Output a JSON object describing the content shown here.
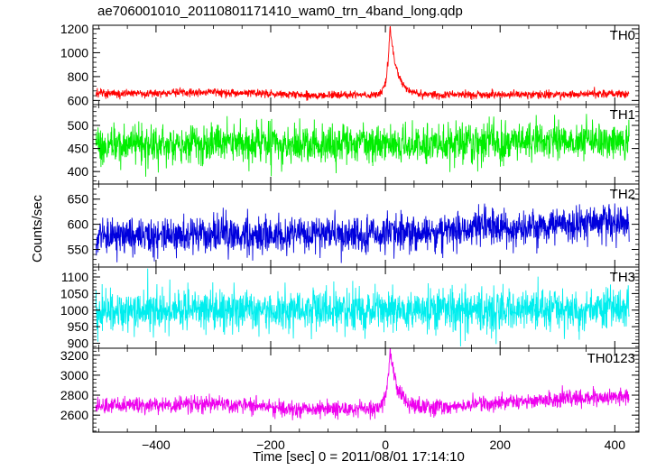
{
  "title": "ae706001010_20110801171410_wam0_trn_4band_long.qdp",
  "colors": {
    "TH0": "#ff0000",
    "TH1": "#00ee00",
    "TH2": "#0000dd",
    "TH3": "#00eeee",
    "TH0123": "#ee00ee",
    "axes": "#000000"
  },
  "chart_data": {
    "type": "line",
    "title": "ae706001010_20110801171410_wam0_trn_4band_long.qdp",
    "xlabel": "Time [sec] 0 = 2011/08/01 17:14:10",
    "ylabel": "Counts/sec",
    "xlim": [
      -510,
      442
    ],
    "x_ticks": [
      -400,
      -200,
      0,
      200,
      400
    ],
    "x_tick_labels": [
      "−400",
      "−200",
      "0",
      "200",
      "400"
    ],
    "x_sampling": {
      "start": -505,
      "end": 425,
      "step": 0.5
    },
    "grid": false,
    "legend": "none",
    "panels": [
      {
        "name": "TH0",
        "color": "#ff0000",
        "ylim": [
          565,
          1230
        ],
        "yticks": [
          600,
          800,
          1000,
          1200
        ],
        "series": {
          "name": "TH0",
          "baseline": [
            [
              -505,
              655
            ],
            [
              -300,
              670
            ],
            [
              -150,
              645
            ],
            [
              300,
              650
            ],
            [
              425,
              655
            ]
          ],
          "noise_sd": 17,
          "flare": {
            "peak_time": 8,
            "peak_value": 1215,
            "rise_sec": 5,
            "decay_sec": 12
          }
        }
      },
      {
        "name": "TH1",
        "color": "#00ee00",
        "ylim": [
          373,
          545
        ],
        "yticks": [
          400,
          450,
          500
        ],
        "series": {
          "name": "TH1",
          "baseline": [
            [
              -505,
              458
            ],
            [
              0,
              460
            ],
            [
              425,
              466
            ]
          ],
          "noise_sd": 21
        }
      },
      {
        "name": "TH2",
        "color": "#0000dd",
        "ylim": [
          515,
          680
        ],
        "yticks": [
          550,
          600,
          650
        ],
        "series": {
          "name": "TH2",
          "baseline": [
            [
              -505,
              578
            ],
            [
              -200,
              577
            ],
            [
              0,
              583
            ],
            [
              200,
              592
            ],
            [
              425,
              603
            ]
          ],
          "noise_sd": 18
        }
      },
      {
        "name": "TH3",
        "color": "#00eeee",
        "ylim": [
          885,
          1130
        ],
        "yticks": [
          900,
          950,
          1000,
          1050,
          1100
        ],
        "series": {
          "name": "TH3",
          "baseline": [
            [
              -505,
              998
            ],
            [
              0,
              998
            ],
            [
              425,
              1003
            ]
          ],
          "noise_sd": 30
        }
      },
      {
        "name": "TH0123",
        "color": "#ee00ee",
        "ylim": [
          2430,
          3270
        ],
        "yticks": [
          2600,
          2800,
          3000,
          3200
        ],
        "series": {
          "name": "TH0123",
          "baseline": [
            [
              -505,
              2690
            ],
            [
              -300,
              2710
            ],
            [
              -150,
              2660
            ],
            [
              100,
              2680
            ],
            [
              300,
              2760
            ],
            [
              425,
              2790
            ]
          ],
          "noise_sd": 40,
          "flare": {
            "peak_time": 8,
            "peak_value": 3250,
            "rise_sec": 5,
            "decay_sec": 13
          }
        }
      }
    ]
  }
}
